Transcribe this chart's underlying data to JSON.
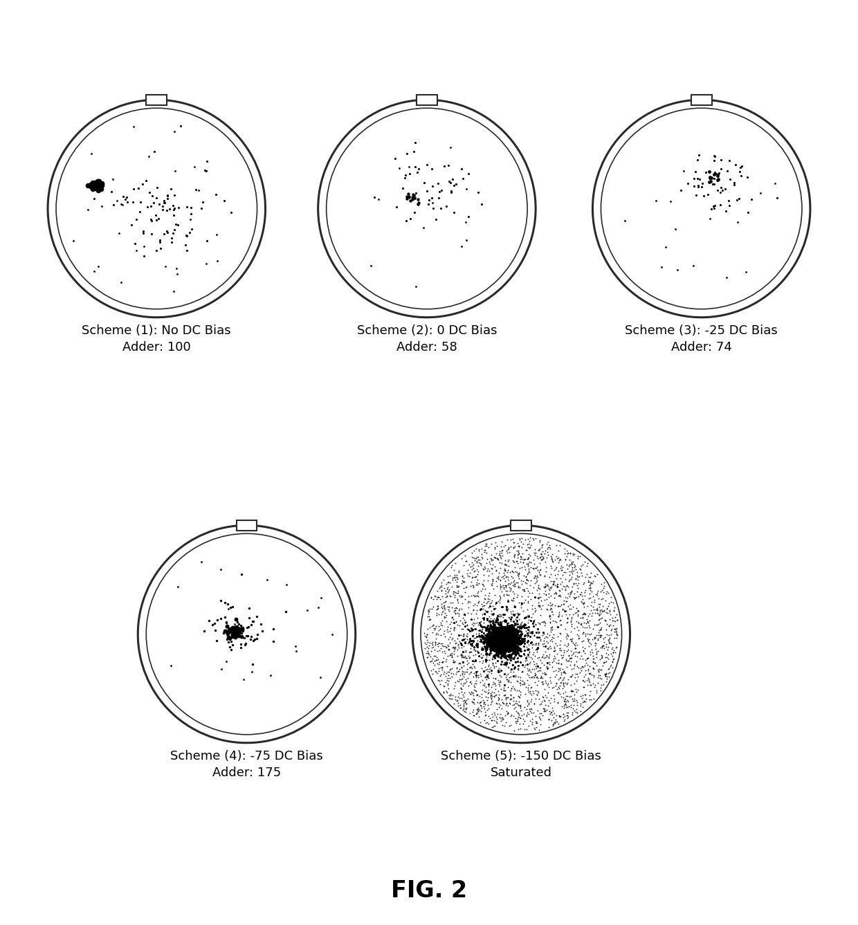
{
  "panels": [
    {
      "title_line1": "Scheme (1): No DC Bias",
      "title_line2": "Adder: 100",
      "row": 1,
      "col": 0,
      "seed": 42
    },
    {
      "title_line1": "Scheme (2): 0 DC Bias",
      "title_line2": "Adder: 58",
      "row": 1,
      "col": 1,
      "seed": 123
    },
    {
      "title_line1": "Scheme (3): -25 DC Bias",
      "title_line2": "Adder: 74",
      "row": 1,
      "col": 2,
      "seed": 77
    },
    {
      "title_line1": "Scheme (4): -75 DC Bias",
      "title_line2": "Adder: 175",
      "row": 2,
      "col": 0,
      "seed": 55
    },
    {
      "title_line1": "Scheme (5): -150 DC Bias",
      "title_line2": "Saturated",
      "row": 2,
      "col": 1,
      "seed": 99
    }
  ],
  "fig_title": "FIG. 2",
  "background": "#ffffff",
  "title_fontsize": 13,
  "fig_title_fontsize": 24
}
